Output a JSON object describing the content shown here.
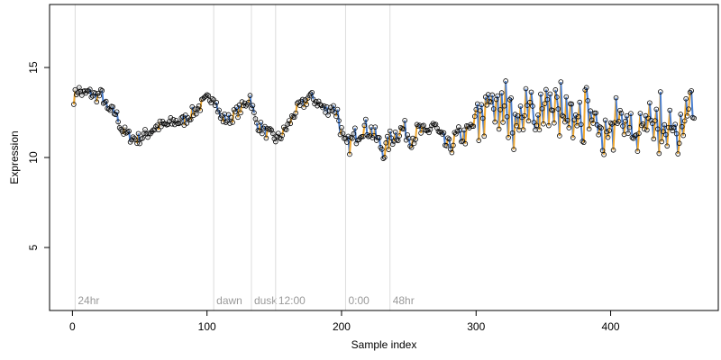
{
  "chart_data": {
    "type": "line",
    "title": "",
    "xlabel": "Sample index",
    "ylabel": "Expression",
    "xlim": [
      -17,
      480
    ],
    "ylim": [
      1.5,
      18.5
    ],
    "xticks": [
      0,
      100,
      200,
      300,
      400
    ],
    "yticks": [
      5,
      10,
      15
    ],
    "grid": false,
    "legend": "none",
    "colors": {
      "rising": "#f0a830",
      "falling": "#4a7fd0",
      "flat": "#b8b8b8",
      "point_stroke": "#000000",
      "vline": "#dcdcdc",
      "vline_label": "#9a9a9a"
    },
    "vlines": [
      {
        "x": 2,
        "label": "24hr"
      },
      {
        "x": 105,
        "label": "dawn"
      },
      {
        "x": 133,
        "label": "dusk"
      },
      {
        "x": 151,
        "label": "12:00"
      },
      {
        "x": 203,
        "label": "0:00"
      },
      {
        "x": 236,
        "label": "48hr"
      }
    ],
    "anchors": [
      [
        1,
        13.3
      ],
      [
        4,
        13.8
      ],
      [
        8,
        13.5
      ],
      [
        12,
        13.6
      ],
      [
        18,
        13.4
      ],
      [
        22,
        13.5
      ],
      [
        26,
        12.6
      ],
      [
        32,
        12.5
      ],
      [
        37,
        11.5
      ],
      [
        42,
        11.2
      ],
      [
        48,
        11.0
      ],
      [
        55,
        11.3
      ],
      [
        62,
        11.7
      ],
      [
        70,
        11.8
      ],
      [
        76,
        12.0
      ],
      [
        82,
        12.0
      ],
      [
        88,
        12.4
      ],
      [
        94,
        12.8
      ],
      [
        100,
        13.2
      ],
      [
        105,
        13.5
      ],
      [
        110,
        12.2
      ],
      [
        116,
        12.1
      ],
      [
        122,
        12.5
      ],
      [
        128,
        12.9
      ],
      [
        132,
        13.4
      ],
      [
        136,
        12.0
      ],
      [
        142,
        11.5
      ],
      [
        148,
        11.2
      ],
      [
        152,
        11.0
      ],
      [
        156,
        11.3
      ],
      [
        162,
        12.0
      ],
      [
        166,
        12.6
      ],
      [
        172,
        13.0
      ],
      [
        176,
        13.4
      ],
      [
        182,
        13.1
      ],
      [
        188,
        12.6
      ],
      [
        193,
        12.8
      ],
      [
        197,
        12.5
      ],
      [
        202,
        10.6
      ],
      [
        206,
        10.7
      ],
      [
        210,
        11.2
      ],
      [
        216,
        11.7
      ],
      [
        222,
        11.5
      ],
      [
        228,
        10.8
      ],
      [
        232,
        10.3
      ],
      [
        236,
        11.0
      ],
      [
        240,
        11.3
      ],
      [
        246,
        11.6
      ],
      [
        252,
        11.1
      ],
      [
        258,
        11.5
      ],
      [
        262,
        11.2
      ],
      [
        268,
        11.9
      ],
      [
        274,
        11.0
      ],
      [
        280,
        10.5
      ],
      [
        286,
        11.2
      ],
      [
        292,
        11.2
      ],
      [
        298,
        11.8
      ],
      [
        302,
        12.1
      ],
      [
        308,
        13.0
      ],
      [
        314,
        12.7
      ],
      [
        320,
        13.2
      ],
      [
        326,
        12.1
      ],
      [
        332,
        12.0
      ],
      [
        338,
        12.6
      ],
      [
        344,
        12.3
      ],
      [
        350,
        13.0
      ],
      [
        356,
        12.7
      ],
      [
        362,
        12.5
      ],
      [
        368,
        11.8
      ],
      [
        374,
        12.2
      ],
      [
        380,
        12.1
      ],
      [
        386,
        12.8
      ],
      [
        392,
        11.8
      ],
      [
        398,
        11.0
      ],
      [
        404,
        11.6
      ],
      [
        410,
        12.0
      ],
      [
        416,
        11.6
      ],
      [
        422,
        12.2
      ],
      [
        428,
        12.4
      ],
      [
        434,
        11.5
      ],
      [
        440,
        11.8
      ],
      [
        446,
        11.6
      ],
      [
        452,
        11.0
      ],
      [
        458,
        12.2
      ],
      [
        462,
        12.6
      ]
    ],
    "n_points": 462
  }
}
